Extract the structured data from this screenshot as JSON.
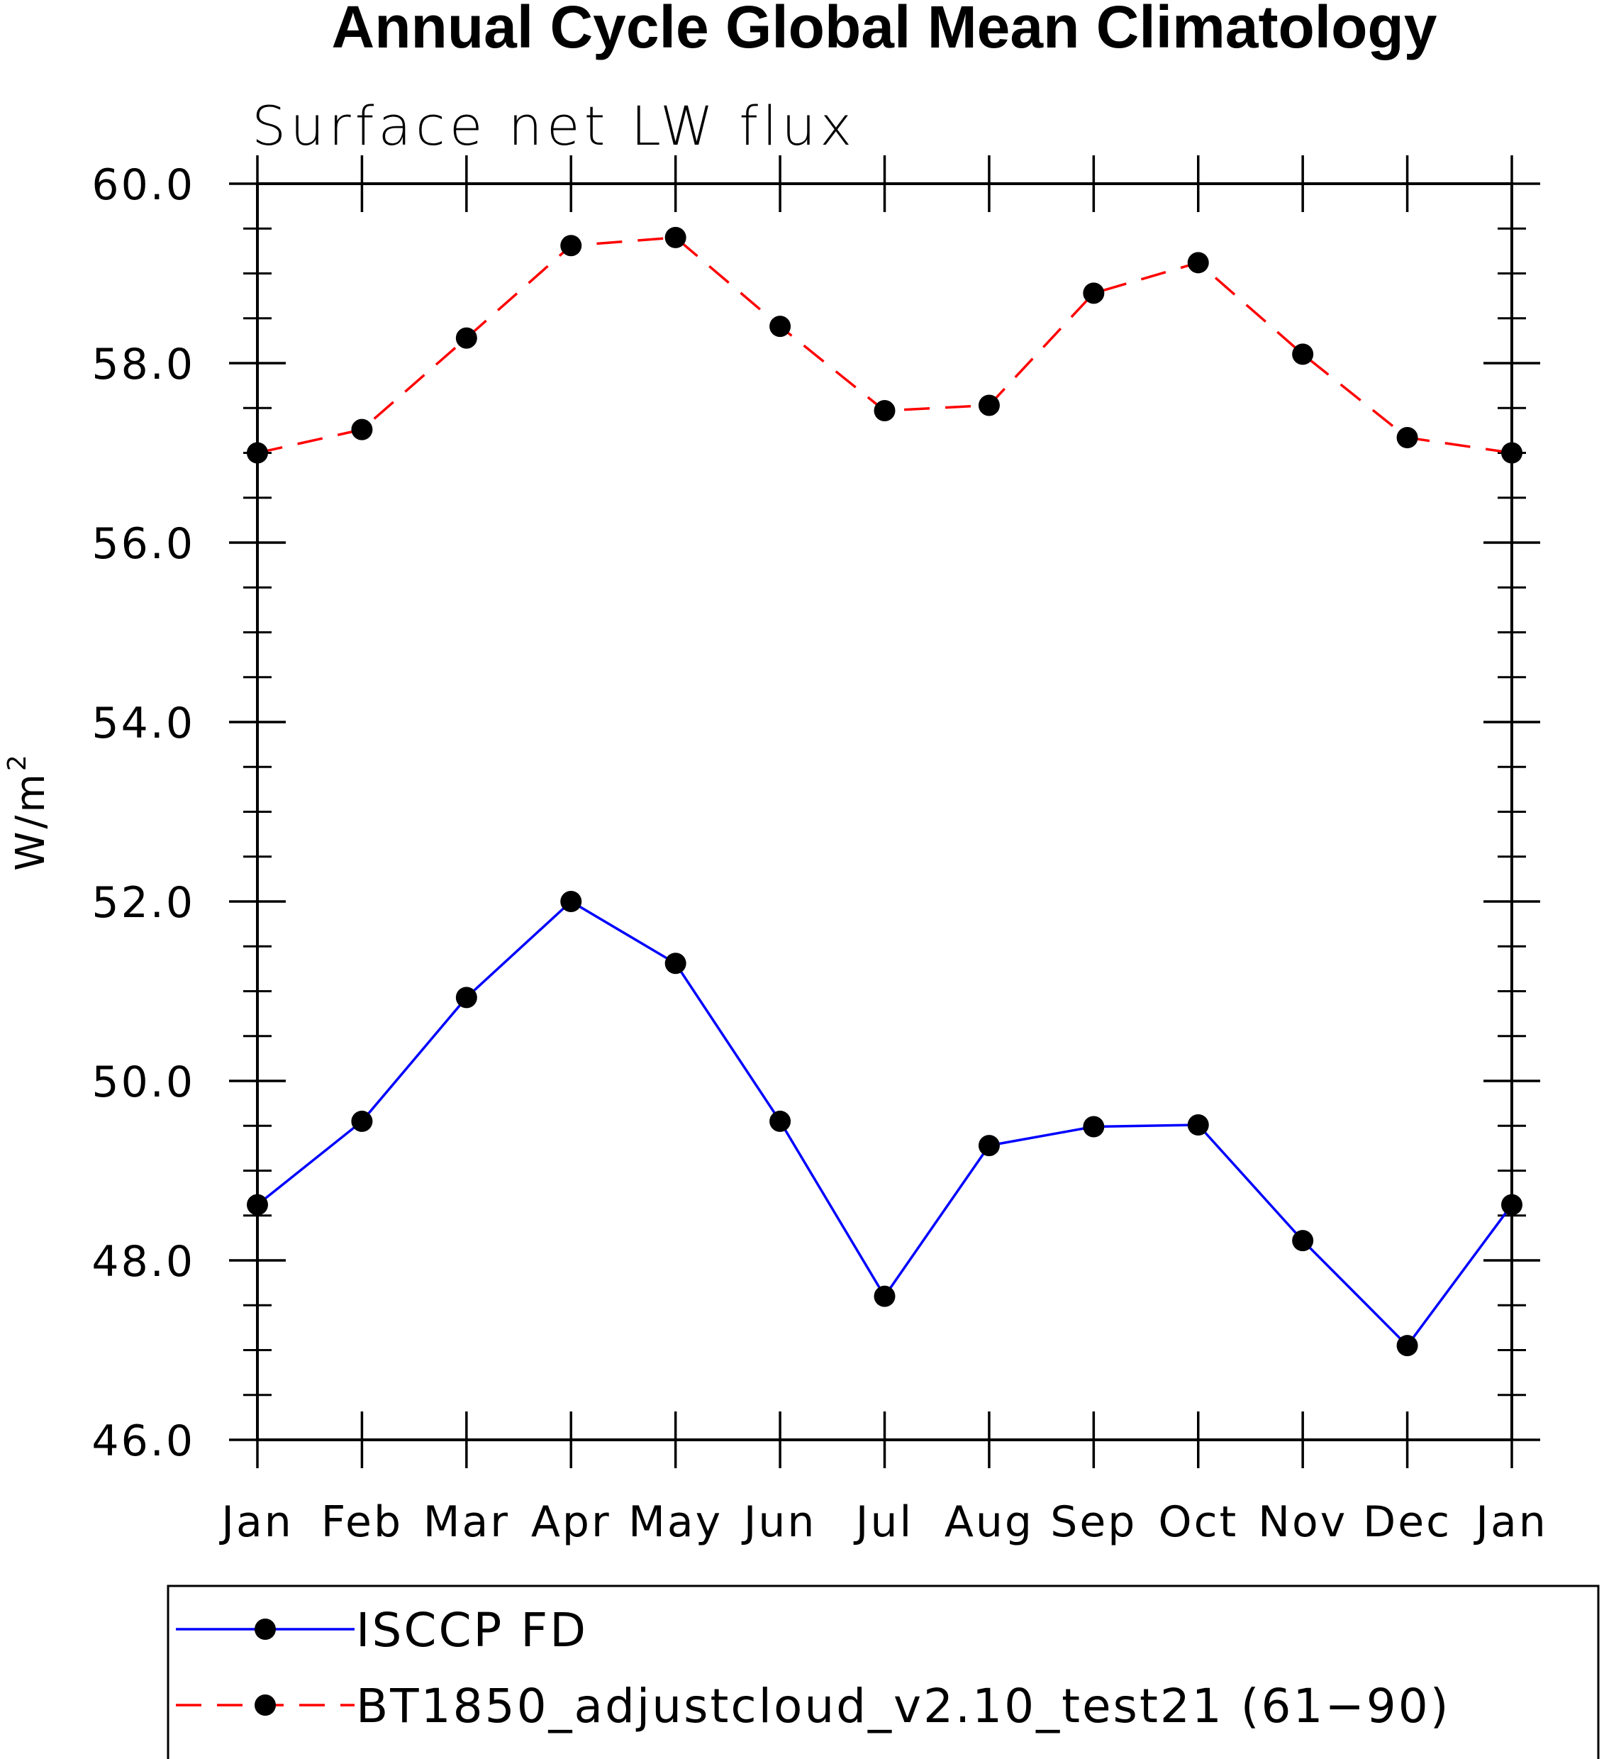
{
  "chart_data": {
    "type": "line",
    "title": "Annual Cycle Global Mean Climatology",
    "subtitle": "Surface net LW flux",
    "ylabel": "W/m",
    "ylabel_superscript": "2",
    "ylim": [
      46.0,
      60.0
    ],
    "yticks": [
      "46.0",
      "48.0",
      "50.0",
      "52.0",
      "54.0",
      "56.0",
      "58.0",
      "60.0"
    ],
    "categories": [
      "Jan",
      "Feb",
      "Mar",
      "Apr",
      "May",
      "Jun",
      "Jul",
      "Aug",
      "Sep",
      "Oct",
      "Nov",
      "Dec",
      "Jan"
    ],
    "series": [
      {
        "name": "ISCCP FD",
        "color": "#0000ff",
        "dash": "solid",
        "values": [
          48.62,
          49.55,
          50.93,
          52.0,
          51.31,
          49.55,
          47.6,
          49.28,
          49.49,
          49.51,
          48.22,
          47.05,
          48.62
        ]
      },
      {
        "name": "BT1850_adjustcloud_v2.10_test21 (61-90)",
        "color": "#ff0000",
        "dash": "dashed",
        "values": [
          57.0,
          57.26,
          58.28,
          59.31,
          59.4,
          58.41,
          57.47,
          57.53,
          58.78,
          59.12,
          58.1,
          57.17,
          57.0
        ]
      }
    ],
    "legend": {
      "position": "bottom",
      "entries": [
        "ISCCP FD",
        "BT1850_adjustcloud_v2.10_test21 (61−90)"
      ]
    },
    "grid": false
  }
}
